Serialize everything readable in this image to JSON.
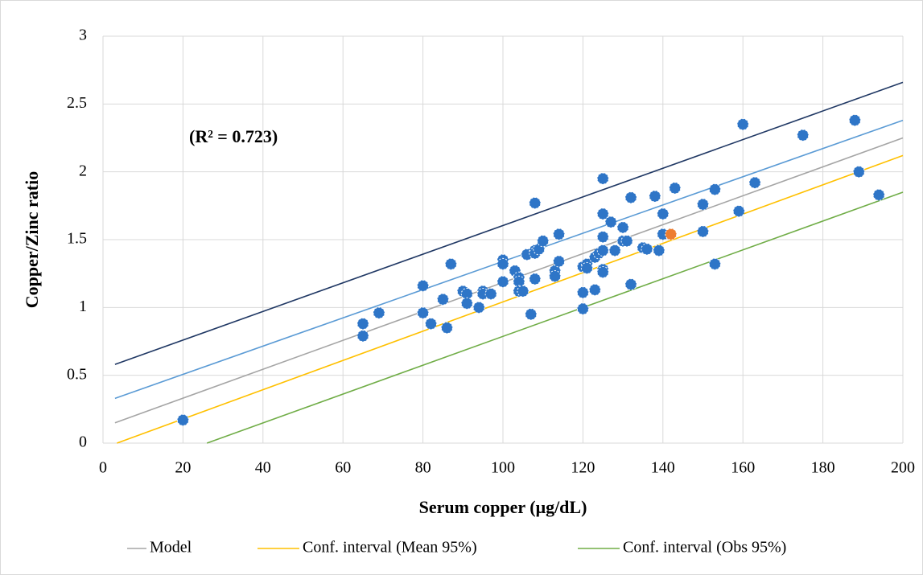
{
  "chart_data": {
    "type": "scatter",
    "x_label": "Serum copper (μg/dL)",
    "y_label": "Copper/Zinc ratio",
    "annotation": "(R² = 0.723)",
    "xlim": [
      0,
      200
    ],
    "xticks": [
      0,
      20,
      40,
      60,
      80,
      100,
      120,
      140,
      160,
      180,
      200
    ],
    "ylim": [
      0,
      3
    ],
    "yticks": [
      0,
      0.5,
      1,
      1.5,
      2,
      2.5,
      3
    ],
    "grid": true,
    "legend": "bottom",
    "series": [
      {
        "type": "scatter",
        "color": "#2e75c7",
        "x": [
          20,
          65,
          65,
          69,
          80,
          80,
          82,
          85,
          86,
          87,
          90,
          91,
          91,
          94,
          95,
          95,
          97,
          100,
          100,
          100,
          103,
          104,
          104,
          104,
          105,
          106,
          107,
          108,
          108,
          108,
          108,
          109,
          110,
          113,
          113,
          114,
          114,
          120,
          120,
          120,
          121,
          121,
          123,
          123,
          124,
          125,
          125,
          125,
          125,
          125,
          125,
          127,
          128,
          130,
          130,
          131,
          132,
          132,
          135,
          136,
          138,
          139,
          140,
          140,
          143,
          150,
          150,
          153,
          153,
          159,
          160,
          163,
          175,
          188,
          189,
          194
        ],
        "values": [
          0.17,
          0.88,
          0.79,
          0.96,
          1.16,
          0.96,
          0.88,
          1.06,
          0.85,
          1.32,
          1.12,
          1.1,
          1.03,
          1.0,
          1.12,
          1.1,
          1.1,
          1.35,
          1.32,
          1.19,
          1.27,
          1.22,
          1.19,
          1.12,
          1.12,
          1.39,
          0.95,
          1.77,
          1.42,
          1.4,
          1.21,
          1.43,
          1.49,
          1.27,
          1.23,
          1.54,
          1.34,
          1.3,
          1.11,
          0.99,
          1.32,
          1.29,
          1.37,
          1.13,
          1.4,
          1.95,
          1.69,
          1.52,
          1.42,
          1.28,
          1.26,
          1.63,
          1.42,
          1.59,
          1.49,
          1.49,
          1.81,
          1.17,
          1.44,
          1.43,
          1.82,
          1.42,
          1.69,
          1.54,
          1.88,
          1.76,
          1.56,
          1.87,
          1.32,
          1.71,
          2.35,
          1.92,
          2.27,
          2.38,
          2.0,
          1.83
        ]
      },
      {
        "type": "scatter",
        "color": "#ed7d31",
        "x": [
          142
        ],
        "values": [
          1.54
        ]
      },
      {
        "type": "line",
        "name": "Model",
        "color": "#a5a5a5",
        "x": [
          3,
          200
        ],
        "values": [
          0.15,
          2.25
        ]
      },
      {
        "type": "line",
        "name": "Conf. interval (Mean 95%)",
        "color": "#ffc000",
        "x": [
          3.5,
          200
        ],
        "values": [
          0,
          2.12
        ]
      },
      {
        "type": "line",
        "name": "Conf. interval (Obs 95%)",
        "color": "#70ad47",
        "x": [
          26,
          200
        ],
        "values": [
          0,
          1.85
        ]
      },
      {
        "type": "line",
        "color": "#5b9bd5",
        "x": [
          3,
          200
        ],
        "values": [
          0.33,
          2.38
        ]
      },
      {
        "type": "line",
        "color": "#203864",
        "x": [
          3,
          200
        ],
        "values": [
          0.58,
          2.66
        ]
      }
    ]
  }
}
